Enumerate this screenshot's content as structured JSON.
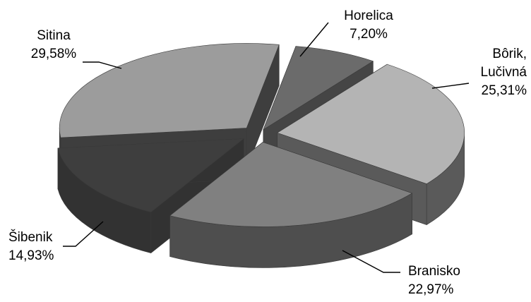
{
  "chart_data": {
    "type": "pie",
    "title": "",
    "style": "3d-exploded",
    "slices": [
      {
        "label": "Horelica",
        "value_text": "7,20%",
        "value": 7.2,
        "color": "#6b6b6b",
        "side_color": "#454545",
        "label_lines": [
          "Horelica"
        ]
      },
      {
        "label": "Bôrik, Lučivná",
        "value_text": "25,31%",
        "value": 25.31,
        "color": "#b4b4b4",
        "side_color": "#5a5a5a",
        "label_lines": [
          "Bôrik,",
          "Lučivná"
        ]
      },
      {
        "label": "Branisko",
        "value_text": "22,97%",
        "value": 22.97,
        "color": "#808080",
        "side_color": "#4e4e4e",
        "label_lines": [
          "Branisko"
        ]
      },
      {
        "label": "Šibenik",
        "value_text": "14,93%",
        "value": 14.93,
        "color": "#3e3e3e",
        "side_color": "#323232",
        "label_lines": [
          "Šibenik"
        ]
      },
      {
        "label": "Sitina",
        "value_text": "29,58%",
        "value": 29.58,
        "color": "#9c9c9c",
        "side_color": "#3e3e3e",
        "label_lines": [
          "Sitina"
        ]
      }
    ]
  }
}
